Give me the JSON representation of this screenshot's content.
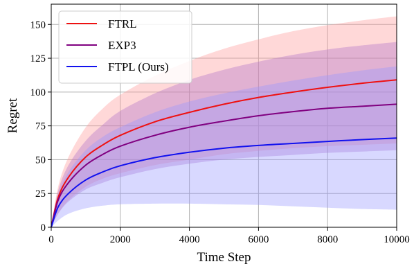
{
  "chart_data": {
    "type": "line",
    "xlabel": "Time Step",
    "ylabel": "Regret",
    "xlim": [
      0,
      10000
    ],
    "ylim": [
      0,
      165
    ],
    "xticks": [
      0,
      2000,
      4000,
      6000,
      8000,
      10000
    ],
    "yticks": [
      0,
      25,
      50,
      75,
      100,
      125,
      150
    ],
    "grid": true,
    "legend_position": "top-left",
    "series": [
      {
        "name": "FTRL",
        "color": "#ee1111",
        "band_color": "#ff9999",
        "x": [
          0,
          200,
          500,
          1000,
          1500,
          2000,
          3000,
          4000,
          5000,
          6000,
          7000,
          8000,
          9000,
          10000
        ],
        "mean": [
          0,
          22,
          37,
          52,
          61,
          68,
          78,
          85,
          91,
          96,
          100,
          103.5,
          106.5,
          109
        ],
        "lower": [
          0,
          10,
          20,
          30,
          36,
          40,
          46,
          50,
          54,
          56.5,
          58.5,
          60,
          61,
          62
        ],
        "upper": [
          0,
          30,
          52,
          74,
          88,
          98,
          112,
          123,
          132,
          139,
          145,
          149.5,
          153,
          156
        ]
      },
      {
        "name": "EXP3",
        "color": "#800080",
        "band_color": "#b070c8",
        "x": [
          0,
          200,
          500,
          1000,
          1500,
          2000,
          3000,
          4000,
          5000,
          6000,
          7000,
          8000,
          9000,
          10000
        ],
        "mean": [
          0,
          20,
          33,
          46,
          54,
          60,
          68,
          74,
          78.5,
          82.5,
          85.5,
          88,
          89.5,
          91
        ],
        "lower": [
          0,
          10,
          19,
          28,
          33,
          37,
          43,
          47,
          50,
          52,
          53.5,
          55,
          56,
          57
        ],
        "upper": [
          0,
          27,
          46,
          64,
          76,
          86,
          99,
          109,
          116.5,
          122.5,
          127.5,
          131.5,
          134.5,
          137
        ]
      },
      {
        "name": "FTPL (Ours)",
        "color": "#1111ee",
        "band_color": "#9999ff",
        "x": [
          0,
          200,
          500,
          1000,
          1500,
          2000,
          3000,
          4000,
          5000,
          6000,
          7000,
          8000,
          9000,
          10000
        ],
        "mean": [
          0,
          15,
          25,
          35,
          41,
          45.5,
          51.5,
          55.5,
          58.5,
          60.5,
          62,
          63.5,
          64.8,
          66
        ],
        "lower": [
          0,
          5,
          10,
          14,
          16,
          17,
          17.5,
          17.5,
          17,
          16.5,
          15.5,
          14.5,
          13.5,
          13
        ],
        "upper": [
          0,
          24,
          41,
          57,
          67,
          74,
          85,
          93,
          99,
          104,
          108.5,
          112.5,
          116,
          119
        ]
      }
    ]
  }
}
